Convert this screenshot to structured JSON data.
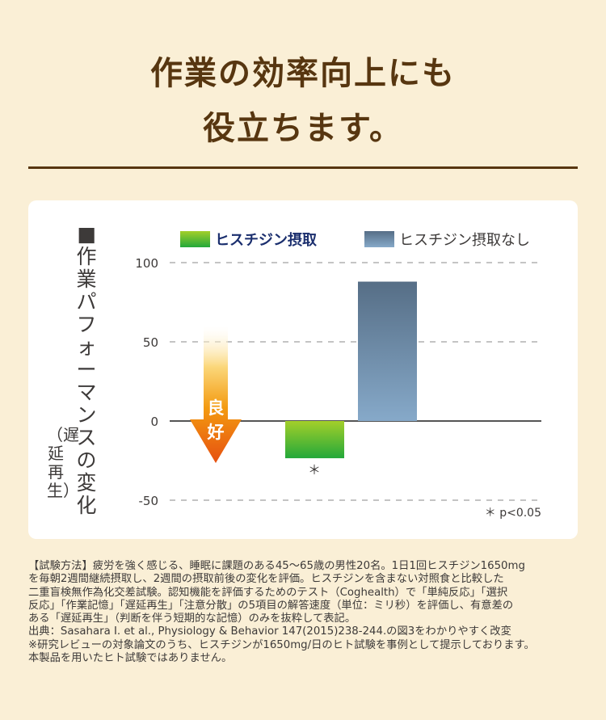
{
  "heading": {
    "line1": "作業の効率向上にも",
    "line2": "役立ちます。"
  },
  "chart_data": {
    "type": "bar",
    "ylabel": "■作業パフォーマンスの変化",
    "ylabel_sub": "（遅延再生）",
    "ylim": [
      -50,
      100
    ],
    "yticks": [
      100,
      50,
      0,
      -50
    ],
    "ytick_labels": [
      "100",
      "50",
      "0",
      "-50"
    ],
    "grid": "dashed horizontal",
    "legend_placement": "top",
    "series": [
      {
        "name": "ヒスチジン摂取",
        "values": [
          -23.5
        ],
        "color_top": "#a3cf2a",
        "color_bottom": "#23a83a",
        "annotation": "＊"
      },
      {
        "name": "ヒスチジン摂取なし",
        "values": [
          88
        ],
        "color_top": "#566e86",
        "color_bottom": "#86a9c9"
      }
    ],
    "arrow_label": "良好",
    "footnote": "＊ p<0.05"
  },
  "notes": [
    "【試験方法】疲労を強く感じる、睡眠に課題のある45～65歳の男性20名。1日1回ヒスチジン1650mg",
    "を毎朝2週間継続摂取し、2週間の摂取前後の変化を評価。ヒスチジンを含まない対照食と比較した",
    "二重盲検無作為化交差試験。認知機能を評価するためのテスト（Coghealth）で「単純反応」「選択",
    "反応」「作業記憶」「遅延再生」「注意分散」の5項目の解答速度（単位：ミリ秒）を評価し、有意差の",
    "ある「遅延再生」（判断を伴う短期的な記憶）のみを抜粋して表記。",
    "出典：Sasahara I. et al., Physiology & Behavior 147(2015)238-244.の図3をわかりやすく改変",
    "※研究レビューの対象論文のうち、ヒスチジンが1650mg/日のヒト試験を事例として提示しております。",
    "本製品を用いたヒト試験ではありません。"
  ]
}
